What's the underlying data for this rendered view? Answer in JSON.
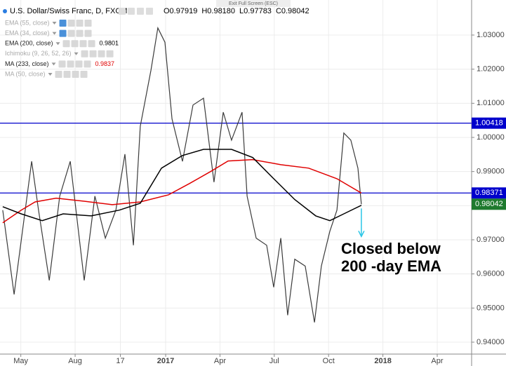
{
  "chart_data": {
    "type": "line",
    "title": "U.S. Dollar/Swiss Franc, D, FXCM",
    "ohlc": [
      "O0.97919",
      "H0.98180",
      "L0.97783",
      "C0.98042"
    ],
    "toolbar_text": "Exit Full Screen (ESC)",
    "indicators": [
      {
        "name": "EMA (55, close)"
      },
      {
        "name": "EMA (34, close)"
      },
      {
        "name": "EMA (200, close)",
        "value": 0.9801
      },
      {
        "name": "Ichimoku (9, 26, 52, 26)"
      },
      {
        "name": "MA (233, close)",
        "value": 0.9837,
        "color": "#e00000"
      },
      {
        "name": "MA (50, close)"
      }
    ],
    "xlim": [
      -0.15,
      25.9
    ],
    "xticks": [
      {
        "value": 1,
        "label": "May"
      },
      {
        "value": 4,
        "label": "Aug"
      },
      {
        "value": 6.5,
        "label": "17"
      },
      {
        "value": 9,
        "label": "2017"
      },
      {
        "value": 12,
        "label": "Apr"
      },
      {
        "value": 15,
        "label": "Jul"
      },
      {
        "value": 18,
        "label": "Oct"
      },
      {
        "value": 21,
        "label": "2018"
      },
      {
        "value": 24,
        "label": "Apr"
      }
    ],
    "ylim": [
      0.93651,
      1.04027
    ],
    "yticks": [
      {
        "value": 0.94,
        "label": "0.94000"
      },
      {
        "value": 0.95,
        "label": "0.95000"
      },
      {
        "value": 0.96,
        "label": "0.96000"
      },
      {
        "value": 0.97,
        "label": "0.97000"
      },
      {
        "value": 0.98,
        "label": "0.98000"
      },
      {
        "value": 0.99,
        "label": "0.99000"
      },
      {
        "value": 1.0,
        "label": "1.00000"
      },
      {
        "value": 1.01,
        "label": "1.01000"
      },
      {
        "value": 1.02,
        "label": "1.02000"
      },
      {
        "value": 1.03,
        "label": "1.03000"
      }
    ],
    "grid": true,
    "series": [
      {
        "color": "#3b3b3b",
        "x": [
          0,
          0.63,
          1.6,
          1.98,
          2.57,
          3.15,
          3.73,
          4.5,
          5.09,
          5.67,
          6.25,
          6.75,
          7.22,
          7.6,
          8.19,
          8.57,
          8.96,
          9.35,
          9.93,
          10.51,
          11.09,
          11.67,
          12.18,
          12.64,
          13.22,
          13.5,
          14.0,
          14.58,
          14.97,
          15.36,
          15.74,
          16.13,
          16.71,
          17.22,
          17.6,
          18.07,
          18.46,
          18.84,
          19.23,
          19.62,
          19.81
        ],
        "values": [
          0.9787,
          0.954,
          0.993,
          0.9787,
          0.9581,
          0.9828,
          0.993,
          0.9581,
          0.9828,
          0.9705,
          0.9787,
          0.9951,
          0.9684,
          1.0033,
          1.0197,
          1.0321,
          1.0279,
          1.0054,
          0.993,
          1.0095,
          1.0115,
          0.9869,
          1.0074,
          0.9992,
          1.0074,
          0.9828,
          0.9705,
          0.9684,
          0.9561,
          0.9705,
          0.9479,
          0.9643,
          0.9623,
          0.9458,
          0.9623,
          0.9725,
          0.9787,
          1.0013,
          0.9992,
          0.991,
          0.98042
        ]
      },
      {
        "color": "#e00000",
        "x": [
          0,
          1.02,
          1.79,
          2.95,
          4.5,
          6.05,
          7.6,
          9.16,
          10.32,
          11.48,
          12.45,
          13.81,
          15.36,
          16.9,
          18.46,
          19.81
        ],
        "values": [
          0.975,
          0.9787,
          0.9811,
          0.9822,
          0.9813,
          0.9803,
          0.9811,
          0.9832,
          0.9865,
          0.99,
          0.9931,
          0.9935,
          0.992,
          0.991,
          0.9879,
          0.9837
        ]
      },
      {
        "color": "#000000",
        "x": [
          0,
          1.02,
          2.18,
          3.34,
          4.89,
          6.44,
          7.6,
          8.77,
          9.93,
          11.09,
          12.64,
          13.81,
          14.97,
          16.13,
          17.29,
          18.07,
          18.84,
          19.81
        ],
        "values": [
          0.9797,
          0.9776,
          0.9756,
          0.9776,
          0.977,
          0.9787,
          0.9807,
          0.991,
          0.9947,
          0.9965,
          0.9965,
          0.9941,
          0.9879,
          0.9818,
          0.977,
          0.9756,
          0.9776,
          0.9801
        ]
      }
    ],
    "levels": [
      {
        "value": 1.00418,
        "color": "#0000cc"
      },
      {
        "value": 0.98371,
        "color": "#0000cc"
      }
    ],
    "last_price": {
      "value": 0.98042,
      "color": "#1e7a2e"
    },
    "annotation": {
      "lines": [
        "Closed below",
        "200 -day EMA"
      ],
      "arrow_color": "#29c5e6"
    }
  }
}
